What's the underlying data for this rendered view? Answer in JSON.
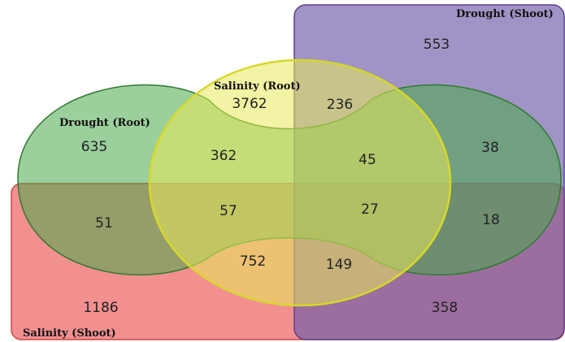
{
  "colors": {
    "salinity_shoot": "#f07d7d",
    "drought_shoot": "#8a73b8",
    "drought_root": "#5fb354",
    "salinity_root": "#e5e86a",
    "background": "#ffffff"
  },
  "sets": {
    "drought_shoot": "Drought (Shoot)",
    "salinity_root": "Salinity (Root)",
    "drought_root": "Drought (Root)",
    "salinity_shoot": "Salinity (Shoot)"
  },
  "regions": {
    "drought_shoot_only": "553",
    "salinity_root_only": "3762",
    "sr_ds": "236",
    "drought_root_only": "635",
    "dr_sr": "362",
    "dr_sr_ds": "45",
    "dr_ds": "38",
    "dr_ss": "51",
    "dr_sr_ss": "57",
    "all_four": "27",
    "dr_ss_ds": "18",
    "sr_ss": "752",
    "sr_ss_ds": "149",
    "salinity_shoot_only": "1186",
    "ss_ds": "358"
  }
}
